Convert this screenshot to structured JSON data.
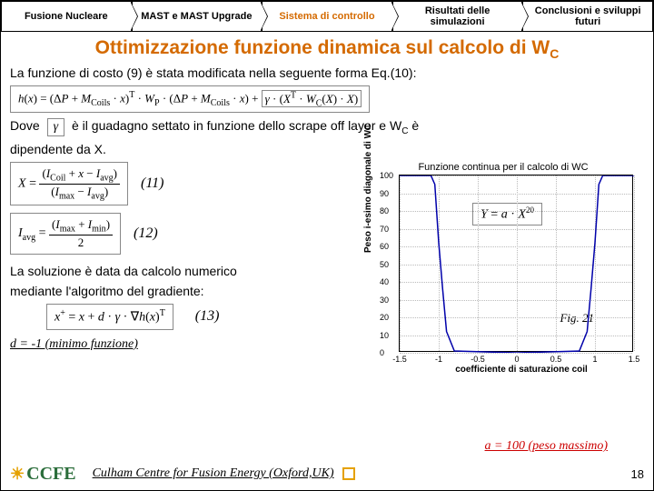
{
  "nav": {
    "items": [
      {
        "label": "Fusione Nucleare"
      },
      {
        "label": "MAST e MAST Upgrade"
      },
      {
        "label": "Sistema di controllo"
      },
      {
        "label": "Risultati delle simulazioni"
      },
      {
        "label": "Conclusioni e sviluppi futuri"
      }
    ],
    "active_color": "#d46a00"
  },
  "title_html": "Ottimizzazione funzione dinamica sul calcolo di W<sub>C</sub>",
  "intro": "La funzione di costo (9) è stata modificata nella seguente forma Eq.(10):",
  "eq10": "h(x) = (ΔP + M_Coils · x)ᵀ · W_P · (ΔP + M_Coils · x) + γ · (Xᵀ · W_C(X) · X)",
  "dove_pre": "Dove",
  "dove_post": "è il guadagno settato in funzione dello scrape off layer e W",
  "dove_post2": " è",
  "dove_line2": "dipendente da X.",
  "eq11": {
    "label": "(11)",
    "expr_num": "(I_Coil + x − I_avg)",
    "expr_den": "(I_max − I_avg)"
  },
  "eq12": {
    "label": "(12)",
    "expr_num": "(I_max + I_min)",
    "expr_den": "2"
  },
  "sol1": "La soluzione è data da calcolo numerico",
  "sol2": "mediante l'algoritmo del gradiente:",
  "eq13": {
    "label": "(13)",
    "expr": "x⁺ = x + d · γ · ∇h(x)ᵀ"
  },
  "d_note": "d = -1 (minimo funzione)",
  "a_note": "a = 100 (peso massimo)",
  "chart": {
    "type": "line",
    "title": "Funzione continua per il calcolo di WC",
    "ylabel": "Peso i-esimo diagonale di WC",
    "xlabel": "coefficiente di saturazione coil",
    "xlim": [
      -1.5,
      1.5
    ],
    "ylim": [
      0,
      100
    ],
    "xticks": [
      -1.5,
      -1,
      -0.5,
      0,
      0.5,
      1,
      1.5
    ],
    "yticks": [
      0,
      10,
      20,
      30,
      40,
      50,
      60,
      70,
      80,
      90,
      100
    ],
    "curve_color": "#0000aa",
    "grid_color": "#bbbbbb",
    "background_color": "#ffffff",
    "data": {
      "x": [
        -1.5,
        -1.3,
        -1.2,
        -1.1,
        -1.05,
        -1.0,
        -0.95,
        -0.9,
        -0.8,
        0,
        0.8,
        0.9,
        0.95,
        1.0,
        1.05,
        1.1,
        1.2,
        1.3,
        1.5
      ],
      "y": [
        100,
        100,
        100,
        100,
        95,
        62,
        36,
        12,
        1,
        0,
        1,
        12,
        36,
        62,
        95,
        100,
        100,
        100,
        100
      ]
    },
    "equation": "Y = a · X²⁰",
    "fig_label": "Fig. 21"
  },
  "footer": {
    "logo_text": "CCFE",
    "center": "Culham Centre for Fusion Energy (Oxford,UK)",
    "page": "18"
  }
}
